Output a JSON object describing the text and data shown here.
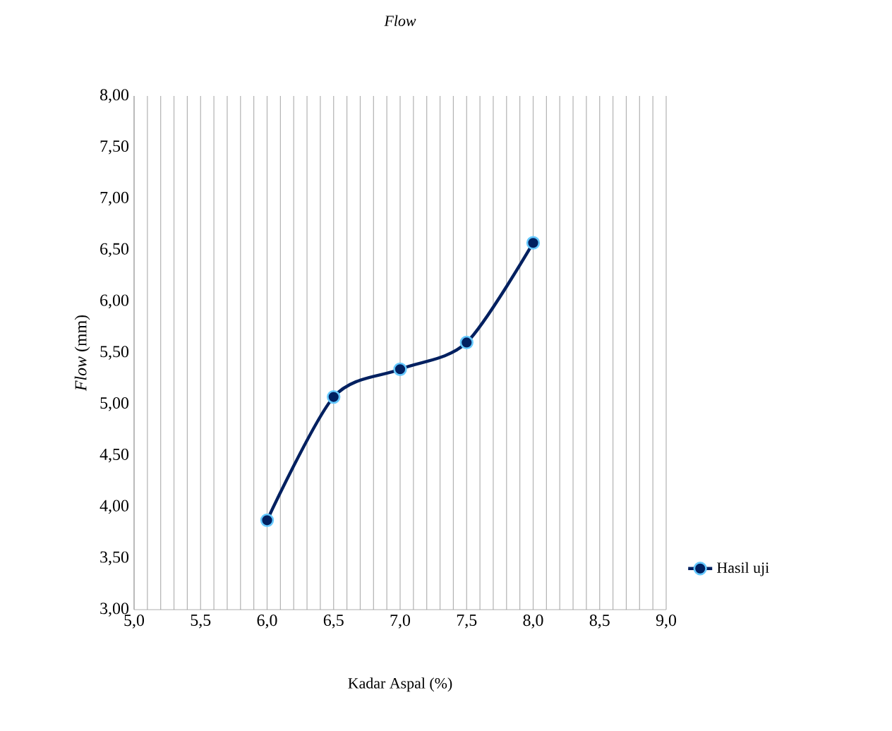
{
  "chart_data": {
    "type": "line",
    "title": "Flow",
    "xlabel": "Kadar Aspal (%)",
    "ylabel": "*Flow* (mm)",
    "x": [
      6.0,
      6.5,
      7.0,
      7.5,
      8.0
    ],
    "series": [
      {
        "name": "Hasil uji",
        "color": "#002060",
        "values": [
          3.87,
          5.07,
          5.34,
          5.6,
          6.57
        ]
      }
    ],
    "xlim": [
      5.0,
      9.0
    ],
    "xticks": [
      {
        "value": 5.0,
        "label": "5,0"
      },
      {
        "value": 5.5,
        "label": "5,5"
      },
      {
        "value": 6.0,
        "label": "6,0"
      },
      {
        "value": 6.5,
        "label": "6,5"
      },
      {
        "value": 7.0,
        "label": "7,0"
      },
      {
        "value": 7.5,
        "label": "7,5"
      },
      {
        "value": 8.0,
        "label": "8,0"
      },
      {
        "value": 8.5,
        "label": "8,5"
      },
      {
        "value": 9.0,
        "label": "9,0"
      }
    ],
    "ylim": [
      3.0,
      8.0
    ],
    "yticks": [
      {
        "value": 3.0,
        "label": "3,00"
      },
      {
        "value": 3.5,
        "label": "3,50"
      },
      {
        "value": 4.0,
        "label": "4,00"
      },
      {
        "value": 4.5,
        "label": "4,50"
      },
      {
        "value": 5.0,
        "label": "5,00"
      },
      {
        "value": 5.5,
        "label": "5,50"
      },
      {
        "value": 6.0,
        "label": "6,00"
      },
      {
        "value": 6.5,
        "label": "6,50"
      },
      {
        "value": 7.0,
        "label": "7,00"
      },
      {
        "value": 7.5,
        "label": "7,50"
      },
      {
        "value": 8.0,
        "label": "8,00"
      }
    ],
    "grid": "x",
    "legend": "bottom right",
    "marker": "circle",
    "line_style": "solid"
  }
}
